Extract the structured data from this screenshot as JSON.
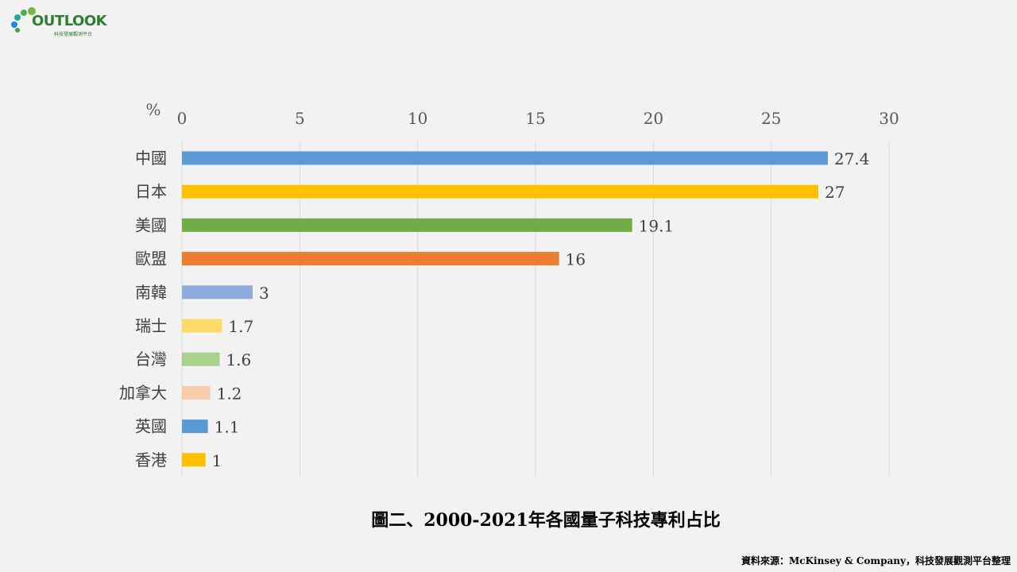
{
  "logo": {
    "text": "OUTLOOK",
    "subtitle": "科技發展觀測平台"
  },
  "chart_data": {
    "type": "bar",
    "orientation": "horizontal",
    "unit_label": "%",
    "categories": [
      "中國",
      "日本",
      "美國",
      "歐盟",
      "南韓",
      "瑞士",
      "台灣",
      "加拿大",
      "英國",
      "香港"
    ],
    "values": [
      27.4,
      27,
      19.1,
      16,
      3,
      1.7,
      1.6,
      1.2,
      1.1,
      1
    ],
    "value_labels": [
      "27.4",
      "27",
      "19.1",
      "16",
      "3",
      "1.7",
      "1.6",
      "1.2",
      "1.1",
      "1"
    ],
    "colors": [
      "#5b9bd5",
      "#ffc000",
      "#70ad47",
      "#ed7d31",
      "#8faadc",
      "#ffd966",
      "#a9d18e",
      "#f8cbad",
      "#5b9bd5",
      "#ffc000"
    ],
    "xlim": [
      0,
      30
    ],
    "xticks": [
      0,
      5,
      10,
      15,
      20,
      25,
      30
    ],
    "axis_position": "top",
    "grid": true
  },
  "caption": "圖二、2000-2021年各國量子科技專利占比",
  "source": "資料來源：McKinsey  & Company，科技發展觀測平台整理"
}
